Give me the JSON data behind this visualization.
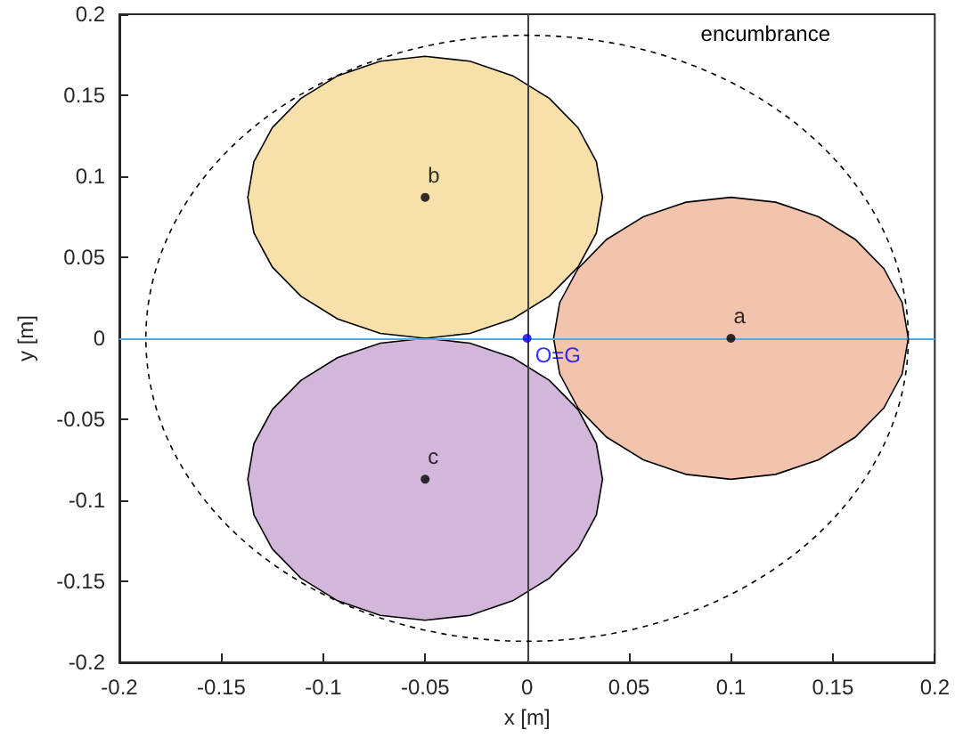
{
  "chart_data": {
    "type": "scatter",
    "xlabel": "x [m]",
    "ylabel": "y [m]",
    "xlim": [
      -0.2,
      0.2
    ],
    "ylim": [
      -0.2,
      0.2
    ],
    "xticks": [
      -0.2,
      -0.15,
      -0.1,
      -0.05,
      0,
      0.05,
      0.1,
      0.15,
      0.2
    ],
    "yticks": [
      -0.2,
      -0.15,
      -0.1,
      -0.05,
      0,
      0.05,
      0.1,
      0.15,
      0.2
    ],
    "grid": false,
    "series": [
      {
        "type": "area",
        "color": "#f2c4ad",
        "x": [
          0.187,
          0.184,
          0.175,
          0.161,
          0.143,
          0.122,
          0.1,
          0.078,
          0.057,
          0.039,
          0.025,
          0.016,
          0.013,
          0.016,
          0.025,
          0.039,
          0.057,
          0.078,
          0.1,
          0.122,
          0.143,
          0.161,
          0.175,
          0.184,
          0.187
        ],
        "values": [
          0,
          0.022,
          0.043,
          0.061,
          0.075,
          0.084,
          0.087,
          0.084,
          0.075,
          0.061,
          0.043,
          0.022,
          0,
          -0.022,
          -0.043,
          -0.061,
          -0.075,
          -0.084,
          -0.087,
          -0.084,
          -0.075,
          -0.061,
          -0.043,
          -0.022,
          0
        ]
      },
      {
        "type": "area",
        "color": "#f8e0aa",
        "x": [
          0.037,
          0.034,
          0.025,
          0.011,
          -0.007,
          -0.028,
          -0.05,
          -0.072,
          -0.093,
          -0.111,
          -0.125,
          -0.134,
          -0.137,
          -0.134,
          -0.125,
          -0.111,
          -0.093,
          -0.072,
          -0.05,
          -0.028,
          -0.007,
          0.011,
          0.025,
          0.034,
          0.037
        ],
        "values": [
          0.087,
          0.109,
          0.13,
          0.148,
          0.162,
          0.171,
          0.174,
          0.171,
          0.162,
          0.148,
          0.13,
          0.109,
          0.087,
          0.065,
          0.044,
          0.026,
          0.012,
          0.003,
          0,
          0.003,
          0.012,
          0.026,
          0.044,
          0.065,
          0.087
        ]
      },
      {
        "type": "area",
        "color": "#d2b7da",
        "x": [
          0.037,
          0.034,
          0.025,
          0.011,
          -0.007,
          -0.028,
          -0.05,
          -0.072,
          -0.093,
          -0.111,
          -0.125,
          -0.134,
          -0.137,
          -0.134,
          -0.125,
          -0.111,
          -0.093,
          -0.072,
          -0.05,
          -0.028,
          -0.007,
          0.011,
          0.025,
          0.034,
          0.037
        ],
        "values": [
          -0.087,
          -0.109,
          -0.13,
          -0.148,
          -0.162,
          -0.171,
          -0.174,
          -0.171,
          -0.162,
          -0.148,
          -0.13,
          -0.109,
          -0.087,
          -0.065,
          -0.044,
          -0.026,
          -0.012,
          -0.003,
          0,
          -0.003,
          -0.012,
          -0.026,
          -0.044,
          -0.065,
          -0.087
        ]
      },
      {
        "color": "#000000",
        "marker": "circle",
        "x": [
          0.1,
          -0.05,
          -0.05
        ],
        "values": [
          0,
          0.087,
          -0.087
        ],
        "value_labels": [
          "a",
          "b",
          "c"
        ]
      },
      {
        "type": "scatter",
        "color": "#0000ff",
        "marker": "circle",
        "x": [
          0
        ],
        "values": [
          0
        ],
        "value_labels": [
          "O=G"
        ]
      }
    ],
    "ref_lines": [
      {
        "axis": "x",
        "value": 0,
        "color": "#404040"
      },
      {
        "axis": "y",
        "value": 0,
        "color": "#4dade6"
      }
    ],
    "annotations": [
      "encumbrance"
    ]
  }
}
